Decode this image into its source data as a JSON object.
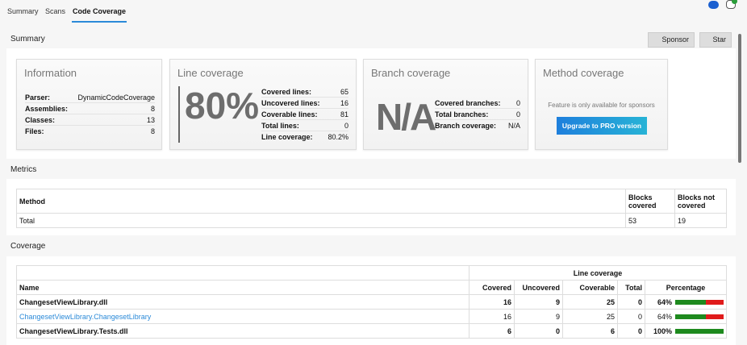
{
  "tabs": [
    "Summary",
    "Scans",
    "Code Coverage"
  ],
  "summary": {
    "title": "Summary",
    "sponsor": "Sponsor",
    "star": "Star",
    "information": {
      "title": "Information",
      "rows": [
        [
          "Parser:",
          "DynamicCodeCoverage"
        ],
        [
          "Assemblies:",
          "8"
        ],
        [
          "Classes:",
          "13"
        ],
        [
          "Files:",
          "8"
        ]
      ]
    },
    "line": {
      "title": "Line coverage",
      "big": "80%",
      "rows": [
        [
          "Covered lines:",
          "65"
        ],
        [
          "Uncovered lines:",
          "16"
        ],
        [
          "Coverable lines:",
          "81"
        ],
        [
          "Total lines:",
          "0"
        ],
        [
          "Line coverage:",
          "80.2%"
        ]
      ]
    },
    "branch": {
      "title": "Branch coverage",
      "big": "N/A",
      "rows": [
        [
          "Covered branches:",
          "0"
        ],
        [
          "Total branches:",
          "0"
        ],
        [
          "Branch coverage:",
          "N/A"
        ]
      ]
    },
    "method": {
      "title": "Method coverage",
      "note": "Feature is only available for sponsors",
      "upgrade": "Upgrade to PRO version"
    }
  },
  "metrics": {
    "title": "Metrics",
    "headers": [
      "Method",
      "Blocks covered",
      "Blocks not covered"
    ],
    "rows": [
      [
        "Total",
        "53",
        "19"
      ]
    ]
  },
  "coverage": {
    "title": "Coverage",
    "group": "Line coverage",
    "headers": [
      "Name",
      "Covered",
      "Uncovered",
      "Coverable",
      "Total",
      "Percentage"
    ],
    "rows": [
      {
        "name": "ChangesetViewLibrary.dll",
        "covered": "16",
        "uncovered": "9",
        "coverable": "25",
        "total": "0",
        "pct": "64%",
        "pctValue": 64,
        "bold": true,
        "link": false
      },
      {
        "name": "ChangesetViewLibrary.ChangesetLibrary",
        "covered": "16",
        "uncovered": "9",
        "coverable": "25",
        "total": "0",
        "pct": "64%",
        "pctValue": 64,
        "bold": false,
        "link": true
      },
      {
        "name": "ChangesetViewLibrary.Tests.dll",
        "covered": "6",
        "uncovered": "0",
        "coverable": "6",
        "total": "0",
        "pct": "100%",
        "pctValue": 100,
        "bold": true,
        "link": false
      }
    ]
  },
  "colors": {
    "accent": "#2b8ad8",
    "covered": "#1e8a1e",
    "uncovered": "#e01b1b"
  }
}
